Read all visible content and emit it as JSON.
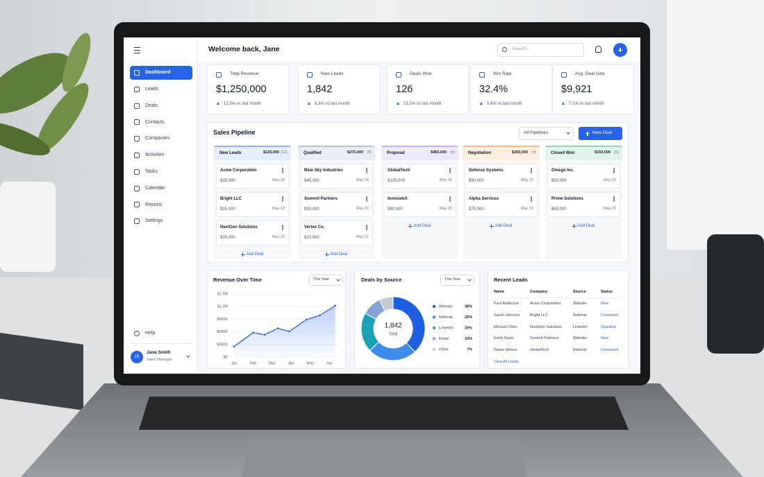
{
  "header": {
    "title": "Welcome back, Jane",
    "search_placeholder": "Search..."
  },
  "sidebar": {
    "nav": [
      "Dashboard",
      "Leads",
      "Deals",
      "Contacts",
      "Companies",
      "Activities",
      "Tasks",
      "Calendar",
      "Reports",
      "Settings"
    ],
    "help": "Help",
    "user": {
      "initials": "JS",
      "name": "Jane Smith",
      "role": "Sales Manager"
    }
  },
  "kpis": [
    {
      "label": "Total Revenue",
      "value": "$1,250,000",
      "change": "12.5% vs last month"
    },
    {
      "label": "New Leads",
      "value": "1,842",
      "change": "8.3% vs last month"
    },
    {
      "label": "Deals Won",
      "value": "126",
      "change": "15.2% vs last month"
    },
    {
      "label": "Win Rate",
      "value": "32.4%",
      "change": "5.6% vs last month"
    },
    {
      "label": "Avg. Deal Size",
      "value": "$9,921",
      "change": "7.1% vs last month"
    }
  ],
  "pipeline": {
    "title": "Sales Pipeline",
    "filter": "All Pipelines",
    "button": "New Deal",
    "add_label": "Add Deal",
    "stages": [
      {
        "name": "New Leads",
        "total": "$125,000",
        "count": "(12)",
        "deals": [
          {
            "name": "Acme Corporation",
            "amount": "$25,000",
            "date": "May 24"
          },
          {
            "name": "Bright LLC",
            "amount": "$15,000",
            "date": "May 23"
          },
          {
            "name": "NextGen Solutions",
            "amount": "$35,000",
            "date": "May 22"
          }
        ]
      },
      {
        "name": "Qualified",
        "total": "$275,000",
        "count": "(8)",
        "deals": [
          {
            "name": "Blue Sky Industries",
            "amount": "$45,000",
            "date": "May 24"
          },
          {
            "name": "Summit Partners",
            "amount": "$30,000",
            "date": "May 22"
          },
          {
            "name": "Vertex Co.",
            "amount": "$20,000",
            "date": "May 21"
          }
        ]
      },
      {
        "name": "Proposal",
        "total": "$450,000",
        "count": "(6)",
        "deals": [
          {
            "name": "GlobalTech",
            "amount": "$120,000",
            "date": "May 24"
          },
          {
            "name": "InnovateX",
            "amount": "$80,000",
            "date": "May 23"
          }
        ]
      },
      {
        "name": "Negotiation",
        "total": "$250,000",
        "count": "(4)",
        "deals": [
          {
            "name": "Defense Systems",
            "amount": "$90,000",
            "date": "May 23"
          },
          {
            "name": "Alpha Services",
            "amount": "$70,000",
            "date": "May 22"
          }
        ]
      },
      {
        "name": "Closed Won",
        "total": "$150,000",
        "count": "(5)",
        "deals": [
          {
            "name": "Omega Inc.",
            "amount": "$50,000",
            "date": "May 23"
          },
          {
            "name": "Prime Solutions",
            "amount": "$60,000",
            "date": "May 21"
          }
        ]
      }
    ]
  },
  "revenue_chart": {
    "type": "line",
    "title": "Revenue Over Time",
    "filter": "This Year",
    "color": "#2563eb",
    "grid": true,
    "x": [
      0,
      1,
      1.6,
      2.3,
      2.9,
      3.8,
      4.5,
      5.3
    ],
    "values": [
      250000,
      580000,
      530000,
      680000,
      610000,
      890000,
      990000,
      1220000
    ],
    "xlim": [
      0,
      5.5
    ],
    "xticks": [
      {
        "value": 0,
        "label": "Jan"
      },
      {
        "value": 1,
        "label": "Feb"
      },
      {
        "value": 2,
        "label": "Mar"
      },
      {
        "value": 3,
        "label": "Apr"
      },
      {
        "value": 4,
        "label": "May"
      },
      {
        "value": 5,
        "label": "Jun"
      }
    ],
    "ylim": [
      0,
      1500000
    ],
    "yticks": [
      {
        "value": 0,
        "label": "$0"
      },
      {
        "value": 300000,
        "label": "$300K"
      },
      {
        "value": 600000,
        "label": "$600K"
      },
      {
        "value": 900000,
        "label": "$900K"
      },
      {
        "value": 1200000,
        "label": "$1.2M"
      },
      {
        "value": 1500000,
        "label": "$1.5M"
      }
    ]
  },
  "source_chart": {
    "type": "donut",
    "title": "Deals by Source",
    "filter": "This Year",
    "total_label": "1,842",
    "total_caption": "Total",
    "categories": [
      "Website",
      "Referral",
      "LinkedIn",
      "Email",
      "Other"
    ],
    "values": [
      38,
      25,
      20,
      10,
      7
    ],
    "value_labels": [
      "38%",
      "25%",
      "20%",
      "10%",
      "7%"
    ],
    "colors": [
      "#1d5fe0",
      "#3d8cec",
      "#1ca2b6",
      "#86a3d8",
      "#c4cad3"
    ]
  },
  "recent_leads": {
    "title": "Recent Leads",
    "columns": [
      "Name",
      "Company",
      "Source",
      "Status"
    ],
    "rows": [
      [
        "Paul Anderson",
        "Acme Corporation",
        "Website",
        "New"
      ],
      [
        "Sarah Johnson",
        "Bright LLC",
        "Referral",
        "Contacted"
      ],
      [
        "Michael Chen",
        "NextGen Solutions",
        "LinkedIn",
        "Qualified"
      ],
      [
        "Emily Davis",
        "Summit Partners",
        "Website",
        "New"
      ],
      [
        "Daniel Wilson",
        "GlobalTech",
        "Referral",
        "Contacted"
      ]
    ],
    "link": "View All Leads"
  }
}
